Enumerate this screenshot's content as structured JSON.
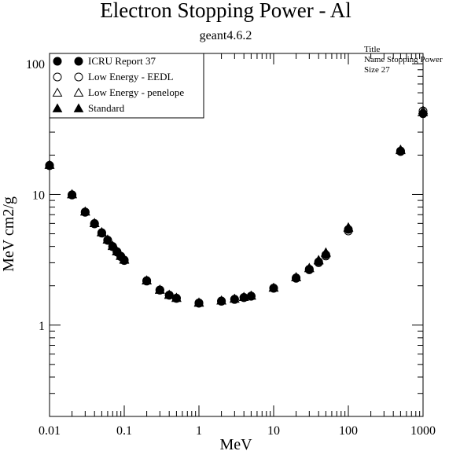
{
  "title": "Electron Stopping Power - Al",
  "subtitle": "geant4.6.2",
  "stats_box": {
    "line1": "Title",
    "line2": "Name  Stopping Power",
    "line3": "Size  27"
  },
  "chart_data": {
    "type": "scatter",
    "title": "Electron Stopping Power - Al",
    "subtitle": "geant4.6.2",
    "xlabel": "MeV",
    "ylabel": "MeV cm2/g",
    "x_scale": "log",
    "y_scale": "log",
    "xlim": [
      0.01,
      1000
    ],
    "ylim": [
      0.2,
      120
    ],
    "x_tick_labels": [
      "0.01",
      "0.1",
      "1",
      "10",
      "100",
      "1000"
    ],
    "x_tick_values": [
      0.01,
      0.1,
      1,
      10,
      100,
      1000
    ],
    "y_tick_labels": [
      "1",
      "10",
      "100"
    ],
    "y_tick_values": [
      1,
      10,
      100
    ],
    "grid": false,
    "legend_position": "top-left",
    "x": [
      0.01,
      0.02,
      0.03,
      0.04,
      0.05,
      0.06,
      0.07,
      0.08,
      0.09,
      0.1,
      0.2,
      0.3,
      0.4,
      0.5,
      1,
      2,
      3,
      4,
      5,
      10,
      20,
      30,
      40,
      50,
      100,
      500,
      1000
    ],
    "series": [
      {
        "name": "ICRU Report 37",
        "marker": "filled-circle",
        "values": [
          16.6,
          9.9,
          7.3,
          5.95,
          5.05,
          4.45,
          3.98,
          3.62,
          3.34,
          3.12,
          2.17,
          1.85,
          1.69,
          1.6,
          1.47,
          1.52,
          1.57,
          1.62,
          1.66,
          1.91,
          2.3,
          2.68,
          3.05,
          3.45,
          5.4,
          21.5,
          41.5
        ]
      },
      {
        "name": "Low Energy - EEDL",
        "marker": "open-circle",
        "values": [
          16.7,
          9.95,
          7.35,
          6.0,
          5.1,
          4.48,
          4.0,
          3.65,
          3.37,
          3.15,
          2.19,
          1.86,
          1.7,
          1.61,
          1.48,
          1.53,
          1.58,
          1.63,
          1.67,
          1.92,
          2.28,
          2.65,
          3.0,
          3.38,
          5.25,
          21.3,
          43.5
        ]
      },
      {
        "name": "Low Energy - penelope",
        "marker": "open-triangle",
        "values": [
          16.9,
          10.05,
          7.4,
          6.05,
          5.15,
          4.52,
          4.05,
          3.68,
          3.4,
          3.18,
          2.2,
          1.87,
          1.71,
          1.62,
          1.49,
          1.54,
          1.59,
          1.64,
          1.68,
          1.93,
          2.32,
          2.72,
          3.12,
          3.55,
          5.55,
          21.8,
          44.0
        ]
      },
      {
        "name": "Standard",
        "marker": "filled-triangle",
        "values": [
          16.8,
          10.0,
          7.38,
          6.02,
          5.12,
          4.5,
          4.02,
          3.66,
          3.38,
          3.16,
          2.19,
          1.86,
          1.7,
          1.61,
          1.48,
          1.54,
          1.59,
          1.64,
          1.68,
          1.93,
          2.33,
          2.74,
          3.15,
          3.6,
          5.6,
          22.0,
          42.5
        ]
      }
    ]
  }
}
